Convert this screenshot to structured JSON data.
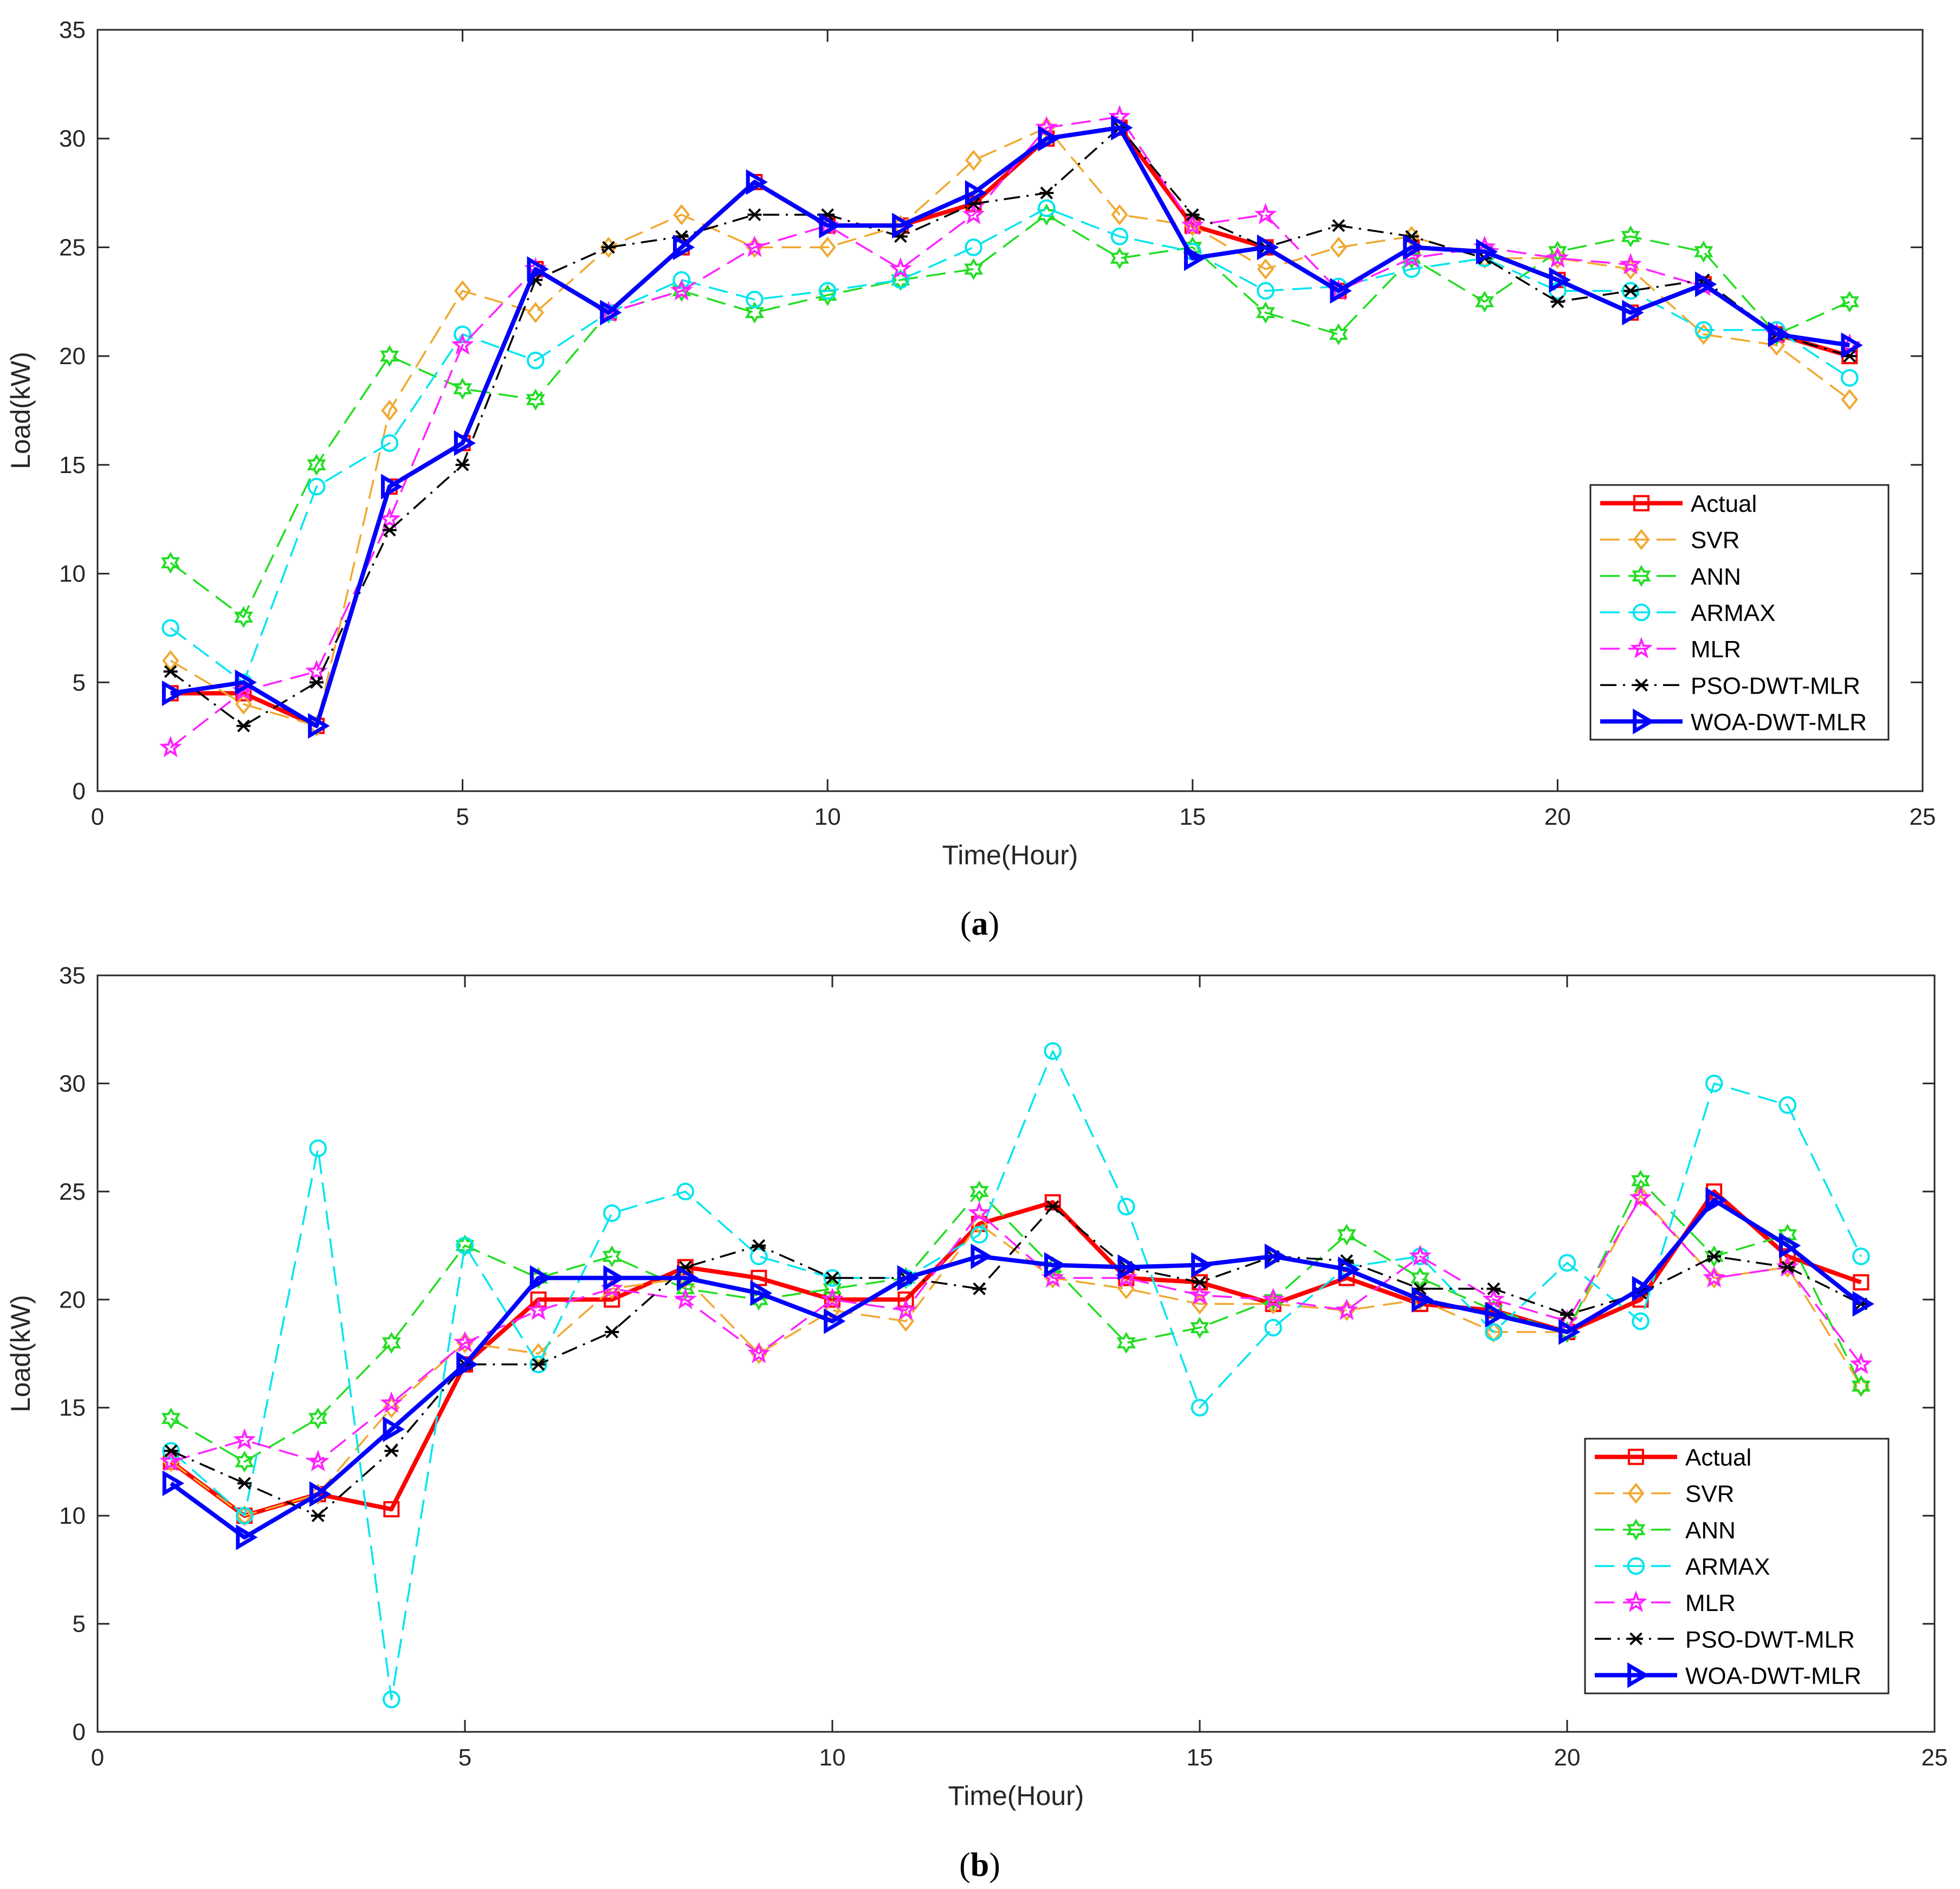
{
  "chart_data": [
    {
      "type": "line",
      "caption": "(a)",
      "caption_letter": "a",
      "xlabel": "Time(Hour)",
      "ylabel": "Load(kW)",
      "xlim": [
        0,
        25
      ],
      "ylim": [
        0,
        35
      ],
      "xticks": [
        0,
        5,
        10,
        15,
        20,
        25
      ],
      "yticks": [
        0,
        5,
        10,
        15,
        20,
        25,
        30,
        35
      ],
      "grid": false,
      "legend_position": "bottom-right",
      "x": [
        1,
        2,
        3,
        4,
        5,
        6,
        7,
        8,
        9,
        10,
        11,
        12,
        13,
        14,
        15,
        16,
        17,
        18,
        19,
        20,
        21,
        22,
        23,
        24
      ],
      "series": [
        {
          "name": "Actual",
          "color": "#ff0000",
          "marker": "square",
          "dash": "solid",
          "width": "thick",
          "values": [
            4.5,
            4.5,
            3,
            14,
            16,
            24,
            22,
            25,
            28,
            26,
            26,
            27,
            30,
            30.5,
            26,
            25,
            23,
            25,
            24.8,
            23.5,
            22,
            23.3,
            21,
            20
          ]
        },
        {
          "name": "SVR",
          "color": "#f0a830",
          "marker": "diamond",
          "dash": "dashed",
          "width": "thin",
          "values": [
            6,
            4,
            3,
            17.5,
            23,
            22,
            25,
            26.5,
            25,
            25,
            26,
            29,
            30.5,
            26.5,
            26,
            24,
            25,
            25.5,
            24.5,
            24.5,
            24,
            21,
            20.5,
            18
          ]
        },
        {
          "name": "ANN",
          "color": "#22dd22",
          "marker": "hexagram",
          "dash": "dashed",
          "width": "thin",
          "values": [
            10.5,
            8,
            15,
            20,
            18.5,
            18,
            22,
            23,
            22,
            22.8,
            23.5,
            24,
            26.5,
            24.5,
            25,
            22,
            21,
            24.5,
            22.5,
            24.8,
            25.5,
            24.8,
            21,
            22.5
          ]
        },
        {
          "name": "ARMAX",
          "color": "#00e5ee",
          "marker": "circle",
          "dash": "dashed",
          "width": "thin",
          "values": [
            7.5,
            5,
            14,
            16,
            21,
            19.8,
            22,
            23.5,
            22.6,
            23,
            23.5,
            25,
            26.8,
            25.5,
            24.8,
            23,
            23.2,
            24,
            24.5,
            23,
            23,
            21.2,
            21.2,
            19
          ]
        },
        {
          "name": "MLR",
          "color": "#ff22ff",
          "marker": "pentagram",
          "dash": "dashed",
          "width": "thin",
          "values": [
            2,
            4.6,
            5.5,
            12.5,
            20.5,
            24,
            22,
            23,
            25,
            26,
            24,
            26.5,
            30.5,
            31,
            26,
            26.5,
            23,
            24.5,
            25,
            24.5,
            24.2,
            23.2,
            21,
            20.5
          ]
        },
        {
          "name": "PSO-DWT-MLR",
          "color": "#000000",
          "marker": "asterisk",
          "dash": "dashdot",
          "width": "thin",
          "values": [
            5.5,
            3,
            5,
            12,
            15,
            23.5,
            25,
            25.5,
            26.5,
            26.5,
            25.5,
            27,
            27.5,
            30.5,
            26.5,
            25,
            26,
            25.5,
            24.5,
            22.5,
            23,
            23.5,
            21,
            20
          ]
        },
        {
          "name": "WOA-DWT-MLR",
          "color": "#0000ff",
          "marker": "triangle-right",
          "dash": "solid",
          "width": "thick",
          "values": [
            4.5,
            5,
            3,
            14,
            16,
            24,
            22,
            25,
            28,
            26,
            26,
            27.5,
            30,
            30.5,
            24.5,
            25,
            23,
            25,
            24.8,
            23.5,
            22,
            23.3,
            21,
            20.5
          ]
        }
      ]
    },
    {
      "type": "line",
      "caption": "(b)",
      "caption_letter": "b",
      "xlabel": "Time(Hour)",
      "ylabel": "Load(kW)",
      "xlim": [
        0,
        25
      ],
      "ylim": [
        0,
        35
      ],
      "xticks": [
        0,
        5,
        10,
        15,
        20,
        25
      ],
      "yticks": [
        0,
        5,
        10,
        15,
        20,
        25,
        30,
        35
      ],
      "grid": false,
      "legend_position": "bottom-right",
      "x": [
        1,
        2,
        3,
        4,
        5,
        6,
        7,
        8,
        9,
        10,
        11,
        12,
        13,
        14,
        15,
        16,
        17,
        18,
        19,
        20,
        21,
        22,
        23,
        24
      ],
      "series": [
        {
          "name": "Actual",
          "color": "#ff0000",
          "marker": "square",
          "dash": "solid",
          "width": "thick",
          "values": [
            12.5,
            10,
            11,
            10.3,
            17,
            20,
            20,
            21.5,
            21,
            20,
            20,
            23.5,
            24.5,
            21,
            20.8,
            19.8,
            21,
            19.8,
            19.5,
            18.5,
            20,
            25,
            22,
            20.8
          ]
        },
        {
          "name": "SVR",
          "color": "#f0a830",
          "marker": "diamond",
          "dash": "dashed",
          "width": "thin",
          "values": [
            12.5,
            10,
            11,
            15,
            18,
            17.5,
            20.5,
            21,
            17.5,
            19.5,
            19,
            23.5,
            21,
            20.5,
            19.8,
            19.8,
            19.5,
            20,
            18.5,
            18.5,
            24.8,
            21,
            21.5,
            16
          ]
        },
        {
          "name": "ANN",
          "color": "#22dd22",
          "marker": "hexagram",
          "dash": "dashed",
          "width": "thin",
          "values": [
            14.5,
            12.5,
            14.5,
            18,
            22.5,
            21,
            22,
            20.5,
            20,
            20.5,
            21,
            25,
            21.5,
            18,
            18.7,
            20,
            23,
            21,
            19.5,
            18.5,
            25.5,
            22,
            23,
            16
          ]
        },
        {
          "name": "ARMAX",
          "color": "#00e5ee",
          "marker": "circle",
          "dash": "dashed",
          "width": "thin",
          "values": [
            13,
            10,
            27,
            1.5,
            22.5,
            17,
            24,
            25,
            22,
            21,
            21,
            23,
            31.5,
            24.3,
            15,
            18.7,
            21.5,
            22,
            18.5,
            21.7,
            19,
            30,
            29,
            22
          ]
        },
        {
          "name": "MLR",
          "color": "#ff22ff",
          "marker": "pentagram",
          "dash": "dashed",
          "width": "thin",
          "values": [
            12.5,
            13.5,
            12.5,
            15.2,
            18,
            19.5,
            20.5,
            20,
            17.5,
            20,
            19.5,
            24,
            21,
            21,
            20.2,
            20,
            19.5,
            22,
            20,
            19,
            24.7,
            21,
            21.5,
            17
          ]
        },
        {
          "name": "PSO-DWT-MLR",
          "color": "#000000",
          "marker": "asterisk",
          "dash": "dashdot",
          "width": "thin",
          "values": [
            13,
            11.5,
            10,
            13,
            17,
            17,
            18.5,
            21.5,
            22.5,
            21,
            21,
            20.5,
            24.3,
            21.5,
            20.8,
            22,
            21.8,
            20.5,
            20.5,
            19.3,
            20.3,
            22,
            21.5,
            19.8
          ]
        },
        {
          "name": "WOA-DWT-MLR",
          "color": "#0000ff",
          "marker": "triangle-right",
          "dash": "solid",
          "width": "thick",
          "values": [
            11.5,
            9,
            11,
            14,
            17,
            21,
            21,
            21,
            20.3,
            19,
            21,
            22,
            21.6,
            21.5,
            21.6,
            22,
            21.4,
            20,
            19.3,
            18.5,
            20.5,
            24.6,
            22.5,
            19.8
          ]
        }
      ]
    }
  ]
}
